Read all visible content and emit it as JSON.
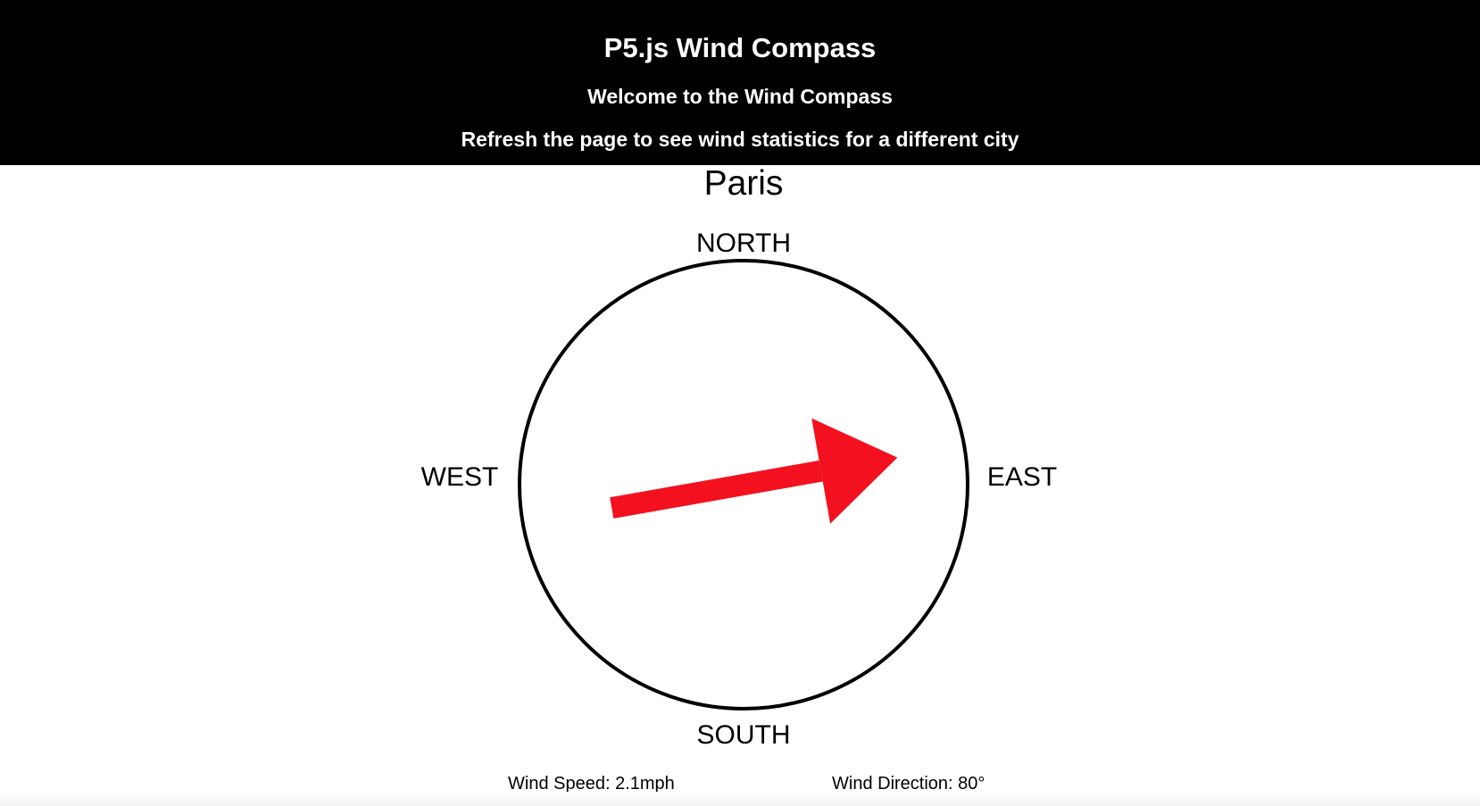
{
  "header": {
    "title": "P5.js Wind Compass",
    "welcome": "Welcome to the Wind Compass",
    "instruction": "Refresh the page to see wind statistics for a different city"
  },
  "compass": {
    "city": "Paris",
    "directions": {
      "north": "NORTH",
      "south": "SOUTH",
      "west": "WEST",
      "east": "EAST"
    },
    "wind_direction_degrees": 80,
    "arrow_color": "#f3111f"
  },
  "stats": {
    "wind_speed": "Wind Speed: 2.1mph",
    "wind_direction": "Wind Direction: 80°"
  }
}
